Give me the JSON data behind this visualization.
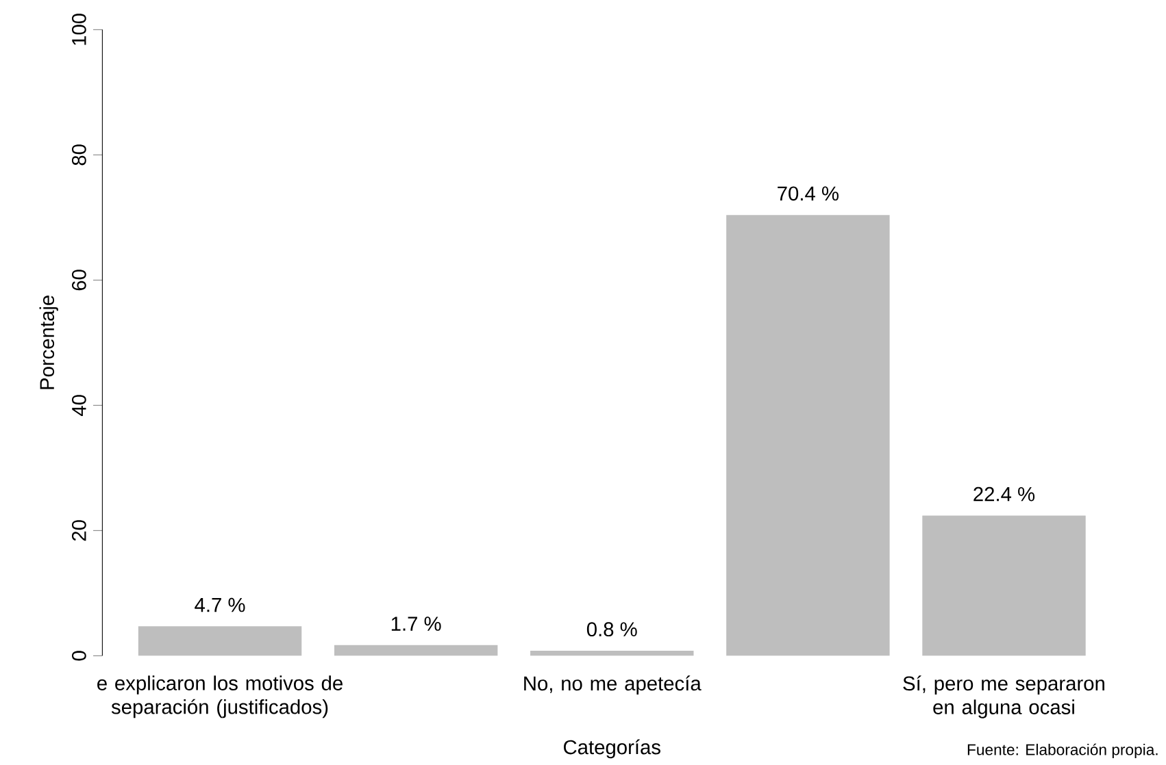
{
  "chart_data": {
    "type": "bar",
    "categories": [
      "e explicaron los motivos de separación (justificados)",
      null,
      "No, no me apetecía",
      null,
      "Sí, pero me separaron en alguna ocasi"
    ],
    "values": [
      4.7,
      1.7,
      0.8,
      70.4,
      22.4
    ],
    "value_labels": [
      "4.7 %",
      "1.7 %",
      "0.8 %",
      "70.4 %",
      "22.4 %"
    ],
    "color": "#bebebe",
    "xlabel": "Categorías",
    "ylabel": "Porcentaje",
    "ylim": [
      0,
      100
    ],
    "yticks": [
      0,
      20,
      40,
      60,
      80,
      100
    ],
    "annotations": [
      "Fuente: Elaboración propia."
    ]
  }
}
